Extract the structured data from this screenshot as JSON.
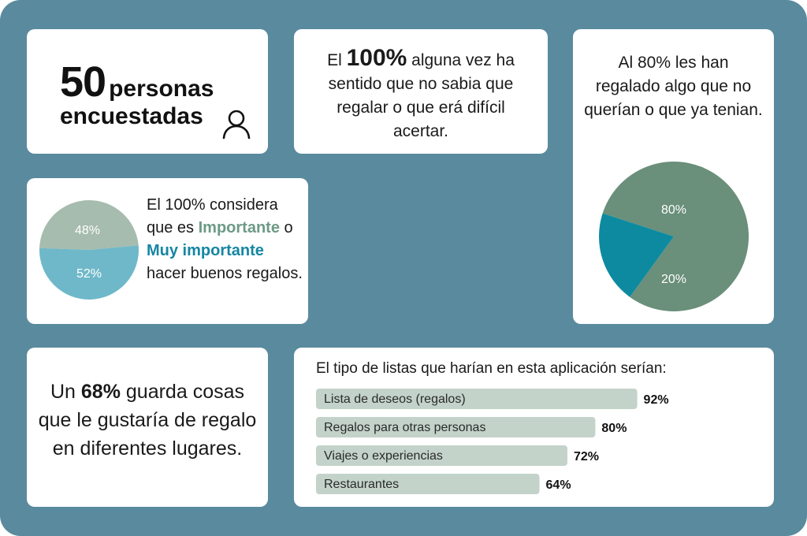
{
  "card_respondents": {
    "number": "50",
    "word1": "personas",
    "word2": "encuestadas"
  },
  "card_hard_to_gift": {
    "pre": "El ",
    "highlight": "100%",
    "post": " alguna vez ha sentido que no sabia que regalar o que erá difícil acertar."
  },
  "card_unwanted_gift": {
    "text": "Al 80% les han regalado algo que no querían o que ya tenian."
  },
  "card_importance": {
    "pre": "El 100% considera que es ",
    "important": "Importante",
    "mid": " o ",
    "very_important": "Muy importante",
    "post": " hacer buenos regalos."
  },
  "card_stores": {
    "pre": "Un ",
    "highlight": "68%",
    "post": " guarda cosas que le gustaría de regalo en diferentes lugares."
  },
  "card_lists": {
    "title": "El tipo de listas que harían en esta aplicación serían:"
  },
  "colors": {
    "background": "#5a8a9e",
    "green": "#6a8f7a",
    "teal": "#0d8aa0",
    "sage": "#a6bcae",
    "light_blue": "#6fb8c9",
    "bar": "#c3d3c9"
  },
  "chart_data": [
    {
      "type": "pie",
      "title": "",
      "slices": [
        {
          "label": "80%",
          "value": 80,
          "color": "#6a8f7a"
        },
        {
          "label": "20%",
          "value": 20,
          "color": "#0d8aa0"
        }
      ]
    },
    {
      "type": "pie",
      "title": "",
      "slices": [
        {
          "label": "48%",
          "value": 48,
          "color": "#a6bcae"
        },
        {
          "label": "52%",
          "value": 52,
          "color": "#6fb8c9"
        }
      ]
    },
    {
      "type": "bar",
      "orientation": "horizontal",
      "title": "El tipo de listas que harían en esta aplicación serían:",
      "categories": [
        "Lista de deseos (regalos)",
        "Regalos para otras personas",
        "Viajes o experiencias",
        "Restaurantes"
      ],
      "values": [
        92,
        80,
        72,
        64
      ],
      "value_labels": [
        "92%",
        "80%",
        "72%",
        "64%"
      ],
      "xlim": [
        0,
        100
      ]
    }
  ]
}
